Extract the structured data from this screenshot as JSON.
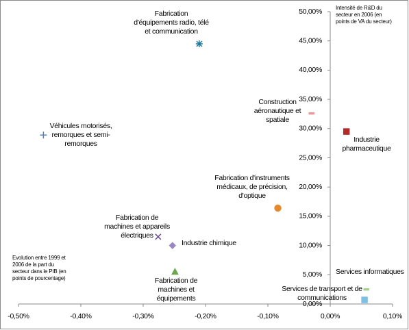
{
  "chart_data": {
    "type": "scatter",
    "x_label": "Evolution entre 1999 et 2006 de la part du secteur dans le PIB (en points de pourcentage)",
    "y_label": "Intensité de R&D du secteur en 2006 (en points de VA du secteur)",
    "xlim": [
      -0.5,
      0.1
    ],
    "xticks": [
      {
        "value": -0.5,
        "label": "-0,50%"
      },
      {
        "value": -0.4,
        "label": "-0,40%"
      },
      {
        "value": -0.3,
        "label": "-0,30%"
      },
      {
        "value": -0.2,
        "label": "-0,20%"
      },
      {
        "value": -0.1,
        "label": "-0,10%"
      },
      {
        "value": 0,
        "label": "0,00%"
      },
      {
        "value": 0.1,
        "label": "0,10%"
      }
    ],
    "ylim": [
      0,
      50
    ],
    "yticks": [
      {
        "value": 0,
        "label": "0,00%"
      },
      {
        "value": 5,
        "label": "5,00%"
      },
      {
        "value": 10,
        "label": "10,00%"
      },
      {
        "value": 15,
        "label": "15,00%"
      },
      {
        "value": 20,
        "label": "20,00%"
      },
      {
        "value": 25,
        "label": "25,00%"
      },
      {
        "value": 30,
        "label": "30,00%"
      },
      {
        "value": 35,
        "label": "35,00%"
      },
      {
        "value": 40,
        "label": "40,00%"
      },
      {
        "value": 45,
        "label": "45,00%"
      },
      {
        "value": 50,
        "label": "50,00%"
      }
    ],
    "series": [
      {
        "name": "Fabrication d'équipements radio, télé et communication",
        "color": "#1f7a9a",
        "marker": "asterisk",
        "x": [
          -0.21
        ],
        "values": [
          44.5
        ]
      },
      {
        "name": "Construction aéronautique et spatiale",
        "color": "#e89a9a",
        "marker": "dash",
        "x": [
          -0.03
        ],
        "values": [
          32.6
        ]
      },
      {
        "name": "Industrie pharmaceutique",
        "color": "#b22a2a",
        "marker": "square",
        "x": [
          0.026
        ],
        "values": [
          29.5
        ]
      },
      {
        "name": "Véhicules motorisés, remorques et semi-remorques",
        "color": "#5b7fbf",
        "marker": "plus",
        "x": [
          -0.46
        ],
        "values": [
          28.9
        ]
      },
      {
        "name": "Fabrication d'instruments médicaux, de précision, d'optique",
        "color": "#e8892b",
        "marker": "circle",
        "x": [
          -0.084
        ],
        "values": [
          16.4
        ]
      },
      {
        "name": "Fabrication de machines et appareils électriques",
        "color": "#6a4c93",
        "marker": "cross",
        "x": [
          -0.276
        ],
        "values": [
          11.5
        ]
      },
      {
        "name": "Industrie chimique",
        "color": "#9b86c4",
        "marker": "diamond",
        "x": [
          -0.253
        ],
        "values": [
          10
        ]
      },
      {
        "name": "Fabrication de machines et équipements",
        "color": "#6aa84f",
        "marker": "triangle",
        "x": [
          -0.249
        ],
        "values": [
          5.5
        ]
      },
      {
        "name": "Services informatiques",
        "color": "#a8d08d",
        "marker": "dash",
        "x": [
          0.058
        ],
        "values": [
          2.5
        ]
      },
      {
        "name": "Services de transport et de communications",
        "color": "#7fbfe6",
        "marker": "square",
        "x": [
          0.055
        ],
        "values": [
          0.7
        ]
      }
    ]
  }
}
